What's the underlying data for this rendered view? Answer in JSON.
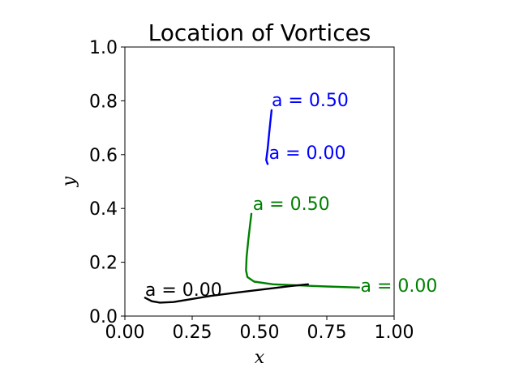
{
  "chart_data": {
    "type": "line",
    "title": "Location of Vortices",
    "xlabel": "x",
    "ylabel": "y",
    "xlim": [
      0.0,
      1.0
    ],
    "ylim": [
      0.0,
      1.0
    ],
    "xticks": [
      "0.00",
      "0.25",
      "0.50",
      "0.75",
      "1.00"
    ],
    "xtick_values": [
      0.0,
      0.25,
      0.5,
      0.75,
      1.0
    ],
    "yticks": [
      "0.0",
      "0.2",
      "0.4",
      "0.6",
      "0.8",
      "1.0"
    ],
    "ytick_values": [
      0.0,
      0.2,
      0.4,
      0.6,
      0.8,
      1.0
    ],
    "grid": false,
    "series": [
      {
        "color": "#0000ff",
        "x": [
          0.545,
          0.54,
          0.535,
          0.53,
          0.525,
          0.53
        ],
        "y": [
          0.765,
          0.72,
          0.67,
          0.62,
          0.58,
          0.565
        ],
        "annotations": [
          {
            "text": "a = 0.50",
            "x": 0.545,
            "y": 0.78
          },
          {
            "text": "a = 0.00",
            "x": 0.535,
            "y": 0.585
          }
        ]
      },
      {
        "color": "#008000",
        "x": [
          0.47,
          0.465,
          0.458,
          0.452,
          0.45,
          0.455,
          0.48,
          0.55,
          0.65,
          0.75,
          0.87
        ],
        "y": [
          0.38,
          0.34,
          0.28,
          0.22,
          0.17,
          0.145,
          0.128,
          0.118,
          0.114,
          0.11,
          0.106
        ],
        "annotations": [
          {
            "text": "a = 0.50",
            "x": 0.475,
            "y": 0.395
          },
          {
            "text": "a = 0.00",
            "x": 0.875,
            "y": 0.09
          }
        ]
      },
      {
        "color": "#000000",
        "x": [
          0.075,
          0.1,
          0.13,
          0.18,
          0.24,
          0.32,
          0.42,
          0.52,
          0.62,
          0.68
        ],
        "y": [
          0.068,
          0.055,
          0.05,
          0.052,
          0.062,
          0.075,
          0.088,
          0.1,
          0.112,
          0.118
        ],
        "annotations": [
          {
            "text": "a = 0.00",
            "x": 0.075,
            "y": 0.075
          }
        ]
      }
    ]
  }
}
